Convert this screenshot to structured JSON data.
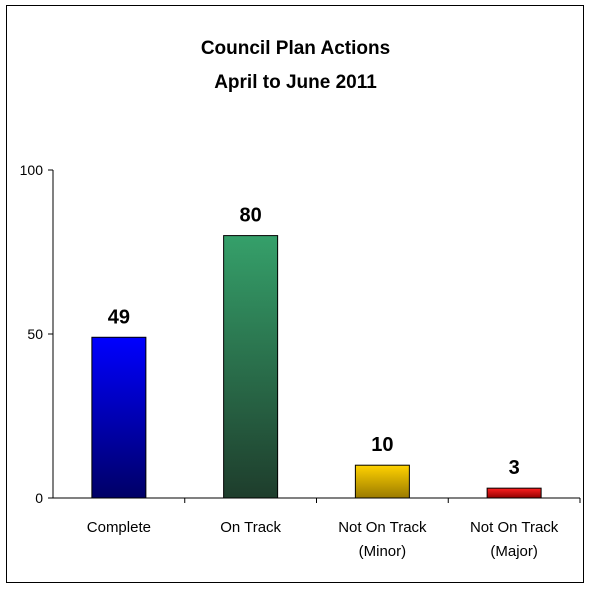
{
  "chart_data": {
    "type": "bar",
    "title": "Council Plan Actions",
    "subtitle": "April to June 2011",
    "categories": [
      [
        "Complete"
      ],
      [
        "On Track"
      ],
      [
        "Not On Track",
        "(Minor)"
      ],
      [
        "Not On Track",
        "(Major)"
      ]
    ],
    "values": [
      49,
      80,
      10,
      3
    ],
    "data_labels": [
      "49",
      "80",
      "10",
      "3"
    ],
    "colors": [
      "#0000ee",
      "#2e8b57",
      "#e6b800",
      "#dd0000"
    ],
    "yticks": [
      0,
      50,
      100
    ],
    "ytick_labels": [
      "0",
      "50",
      "100"
    ],
    "ylim": [
      0,
      100
    ],
    "xlabel": "",
    "ylabel": "",
    "grid": false,
    "legend": "none"
  }
}
